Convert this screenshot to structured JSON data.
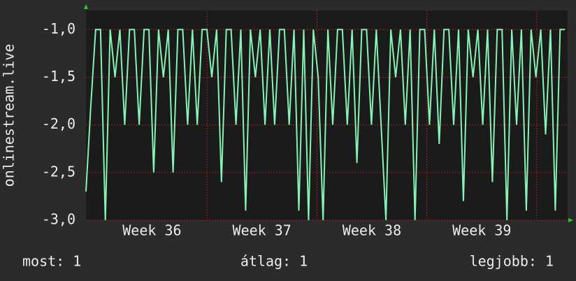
{
  "chart_data": {
    "type": "line",
    "ylabel": "onlinestream.live",
    "xlim": [
      35.9,
      40.28
    ],
    "ylim": [
      -3.0,
      -0.8
    ],
    "yticks": [
      {
        "value": -3.0,
        "label": "-3,0"
      },
      {
        "value": -2.5,
        "label": "-2,5"
      },
      {
        "value": -2.0,
        "label": "-2,0"
      },
      {
        "value": -1.5,
        "label": "-1,5"
      },
      {
        "value": -1.0,
        "label": "-1,0"
      }
    ],
    "xticks": [
      {
        "value": 36.5,
        "label": "Week 36"
      },
      {
        "value": 37.5,
        "label": "Week 37"
      },
      {
        "value": 38.5,
        "label": "Week 38"
      },
      {
        "value": 39.5,
        "label": "Week 39"
      }
    ],
    "xgrid": [
      37,
      38,
      39,
      40
    ],
    "grid": true,
    "series": [
      {
        "color": "#86f2b4",
        "x": [
          35.9,
          35.944,
          35.988,
          36.032,
          36.076,
          36.12,
          36.164,
          36.208,
          36.252,
          36.296,
          36.34,
          36.384,
          36.428,
          36.472,
          36.516,
          36.56,
          36.604,
          36.648,
          36.692,
          36.736,
          36.78,
          36.824,
          36.868,
          36.912,
          36.956,
          37,
          37.044,
          37.088,
          37.132,
          37.176,
          37.22,
          37.264,
          37.308,
          37.352,
          37.396,
          37.44,
          37.484,
          37.528,
          37.572,
          37.616,
          37.66,
          37.704,
          37.748,
          37.792,
          37.836,
          37.88,
          37.924,
          37.968,
          38.012,
          38.056,
          38.1,
          38.144,
          38.188,
          38.232,
          38.276,
          38.32,
          38.364,
          38.408,
          38.452,
          38.496,
          38.54,
          38.584,
          38.628,
          38.672,
          38.716,
          38.76,
          38.804,
          38.848,
          38.892,
          38.936,
          38.98,
          39.024,
          39.068,
          39.112,
          39.156,
          39.2,
          39.244,
          39.288,
          39.332,
          39.376,
          39.42,
          39.464,
          39.508,
          39.552,
          39.596,
          39.64,
          39.684,
          39.728,
          39.772,
          39.816,
          39.86,
          39.904,
          39.948,
          39.992,
          40.036,
          40.08,
          40.124,
          40.168,
          40.212,
          40.256
        ],
        "values": [
          -2.7,
          -1.8,
          -1.0,
          -1.0,
          -3.0,
          -1.0,
          -1.5,
          -1.0,
          -2.0,
          -1.0,
          -1.0,
          -2.0,
          -1.0,
          -1.0,
          -2.5,
          -1.0,
          -1.5,
          -1.0,
          -2.5,
          -1.0,
          -1.0,
          -2.0,
          -1.0,
          -2.0,
          -1.0,
          -1.0,
          -1.5,
          -1.0,
          -2.6,
          -1.0,
          -1.0,
          -2.0,
          -1.0,
          -2.9,
          -1.0,
          -1.5,
          -1.0,
          -2.0,
          -1.0,
          -2.0,
          -1.0,
          -1.0,
          -2.0,
          -1.0,
          -2.9,
          -1.0,
          -3.0,
          -1.0,
          -1.5,
          -3.0,
          -1.0,
          -2.0,
          -1.0,
          -1.0,
          -2.0,
          -1.0,
          -2.4,
          -1.0,
          -1.0,
          -2.0,
          -1.0,
          -2.0,
          -3.0,
          -1.0,
          -1.5,
          -1.0,
          -2.0,
          -1.0,
          -3.0,
          -1.0,
          -1.0,
          -2.0,
          -1.0,
          -2.2,
          -1.0,
          -1.0,
          -2.0,
          -1.0,
          -2.8,
          -1.0,
          -1.5,
          -1.0,
          -2.0,
          -1.0,
          -2.6,
          -1.0,
          -1.0,
          -3.0,
          -1.0,
          -2.0,
          -1.0,
          -2.9,
          -1.0,
          -1.5,
          -1.0,
          -2.1,
          -1.0,
          -2.9,
          -1.0,
          -1.0
        ]
      }
    ],
    "legend_stats": [
      "most: 1",
      "átlag: 1",
      "legjobb: 1"
    ]
  }
}
